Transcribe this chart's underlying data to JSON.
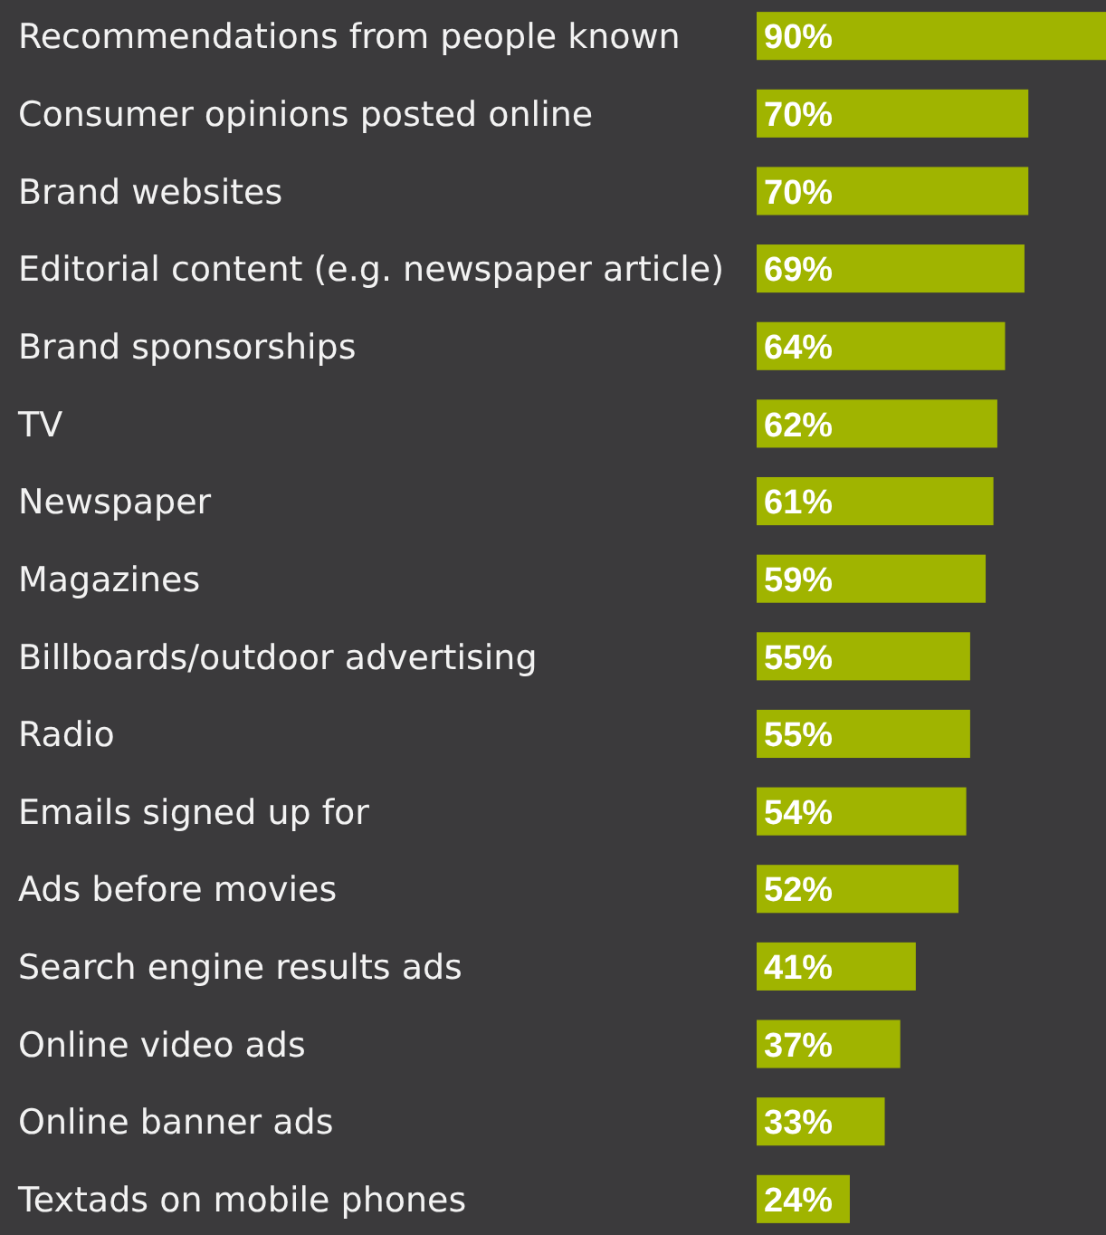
{
  "chart_data": {
    "type": "bar",
    "orientation": "horizontal",
    "categories": [
      "Recommendations from people known",
      "Consumer opinions posted online",
      "Brand websites",
      "Editorial content (e.g. newspaper article)",
      "Brand sponsorships",
      "TV",
      "Newspaper",
      "Magazines",
      "Billboards/outdoor advertising",
      "Radio",
      "Emails signed up for",
      "Ads before movies",
      "Search engine results ads",
      "Online video ads",
      "Online banner ads",
      "Textads on mobile phones"
    ],
    "values": [
      90,
      70,
      70,
      69,
      64,
      62,
      61,
      59,
      55,
      55,
      54,
      52,
      41,
      37,
      33,
      24
    ],
    "value_labels": [
      "90%",
      "70%",
      "70%",
      "69%",
      "64%",
      "62%",
      "61%",
      "59%",
      "55%",
      "55%",
      "54%",
      "52%",
      "41%",
      "37%",
      "33%",
      "24%"
    ],
    "color": "#a0b400"
  }
}
